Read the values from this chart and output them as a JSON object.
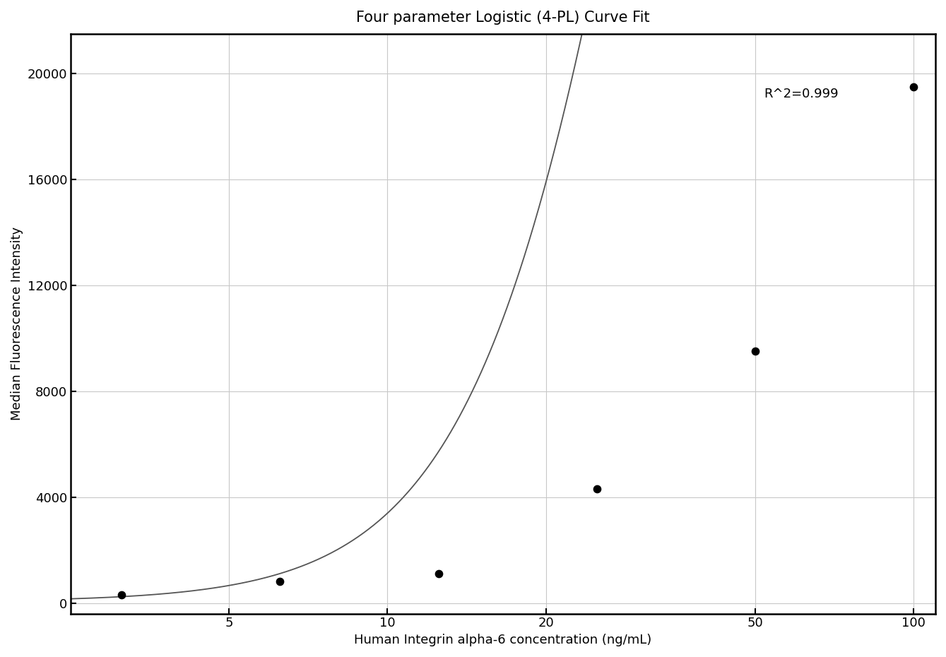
{
  "title": "Four parameter Logistic (4-PL) Curve Fit",
  "xlabel": "Human Integrin alpha-6 concentration (ng/mL)",
  "ylabel": "Median Fluorescence Intensity",
  "r_squared_text": "R^2=0.999",
  "data_x": [
    3.125,
    6.25,
    12.5,
    25,
    50,
    100
  ],
  "data_y": [
    300,
    820,
    1100,
    4300,
    9500,
    19500
  ],
  "x_ticks": [
    5,
    10,
    20,
    50,
    100
  ],
  "x_tick_labels": [
    "5",
    "10",
    "20",
    "50",
    "100"
  ],
  "y_ticks": [
    0,
    4000,
    8000,
    12000,
    16000,
    20000
  ],
  "y_tick_labels": [
    "0",
    "4000",
    "8000",
    "12000",
    "16000",
    "20000"
  ],
  "xlim": [
    2.5,
    110
  ],
  "ylim": [
    -400,
    21500
  ],
  "point_color": "#000000",
  "curve_color": "#555555",
  "grid_color": "#c8c8c8",
  "background_color": "#ffffff",
  "title_fontsize": 15,
  "label_fontsize": 13,
  "tick_fontsize": 13,
  "annotation_fontsize": 13,
  "r2_x": 52,
  "r2_y": 19100,
  "point_size": 55,
  "line_width": 1.3,
  "4pl_A": 50,
  "4pl_B": 2.5,
  "4pl_C": 35,
  "4pl_D": 80000
}
